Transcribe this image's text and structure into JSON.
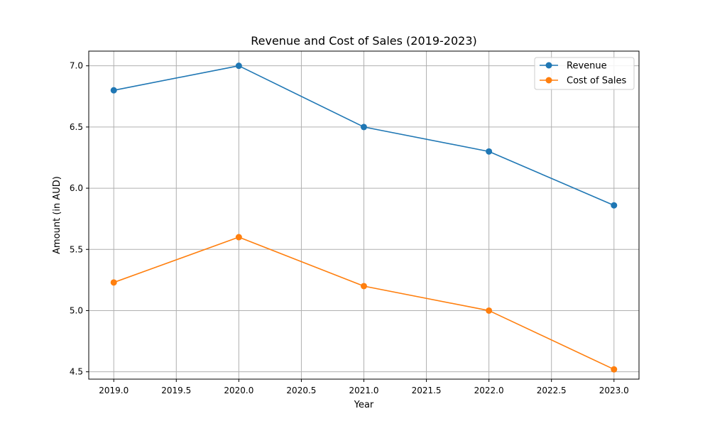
{
  "chart_data": {
    "type": "line",
    "title": "Revenue and Cost of Sales (2019-2023)",
    "xlabel": "Year",
    "ylabel": "Amount (in AUD)",
    "x": [
      2019,
      2020,
      2021,
      2022,
      2023
    ],
    "xlim": [
      2018.8,
      2023.2
    ],
    "ylim": [
      4.44,
      7.12
    ],
    "x_ticks": [
      2019.0,
      2019.5,
      2020.0,
      2020.5,
      2021.0,
      2021.5,
      2022.0,
      2022.5,
      2023.0
    ],
    "x_tick_labels": [
      "2019.0",
      "2019.5",
      "2020.0",
      "2020.5",
      "2021.0",
      "2021.5",
      "2022.0",
      "2022.5",
      "2023.0"
    ],
    "y_ticks": [
      4.5,
      5.0,
      5.5,
      6.0,
      6.5,
      7.0
    ],
    "y_tick_labels": [
      "4.5",
      "5.0",
      "5.5",
      "6.0",
      "6.5",
      "7.0"
    ],
    "grid": true,
    "legend_position": "top-right",
    "series": [
      {
        "name": "Revenue",
        "color": "#1f77b4",
        "marker": "circle",
        "values": [
          6.8,
          7.0,
          6.5,
          6.3,
          5.86
        ]
      },
      {
        "name": "Cost of Sales",
        "color": "#ff7f0e",
        "marker": "circle",
        "values": [
          5.23,
          5.6,
          5.2,
          5.0,
          4.52
        ]
      }
    ]
  }
}
